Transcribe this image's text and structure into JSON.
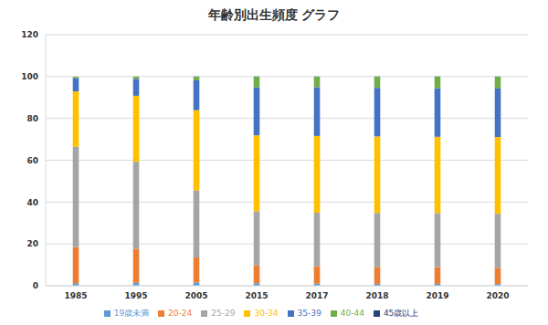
{
  "chart_data": {
    "type": "bar",
    "title": "年齢別出生頻度 グラフ",
    "categories": [
      "1985",
      "1995",
      "2005",
      "2015",
      "2017",
      "2018",
      "2019",
      "2020"
    ],
    "series": [
      {
        "name": "19歳未満",
        "color": "#5B9BD5",
        "values": [
          1.2,
          1.4,
          1.5,
          1.2,
          1.0,
          0.9,
          0.9,
          0.8
        ]
      },
      {
        "name": "20-24",
        "color": "#ED7D31",
        "values": [
          17.3,
          16.3,
          12.0,
          8.5,
          8.3,
          8.1,
          8.0,
          7.7
        ]
      },
      {
        "name": "25-29",
        "color": "#A5A5A5",
        "values": [
          47.9,
          41.6,
          32.1,
          25.9,
          25.6,
          25.8,
          25.8,
          25.9
        ]
      },
      {
        "name": "30-34",
        "color": "#FFC000",
        "values": [
          26.5,
          31.5,
          38.3,
          36.3,
          36.7,
          36.6,
          36.5,
          36.7
        ]
      },
      {
        "name": "35-39",
        "color": "#4472C4",
        "values": [
          6.4,
          8.1,
          14.3,
          22.9,
          23.3,
          23.2,
          23.2,
          23.2
        ]
      },
      {
        "name": "40-44",
        "color": "#70AD47",
        "values": [
          0.6,
          1.1,
          1.7,
          5.1,
          5.0,
          5.3,
          5.5,
          5.6
        ]
      },
      {
        "name": "45歳以上",
        "color": "#264478",
        "values": [
          0.0,
          0.0,
          0.1,
          0.1,
          0.1,
          0.1,
          0.1,
          0.1
        ]
      }
    ],
    "ylim": [
      0,
      120
    ],
    "yticks": [
      0,
      20,
      40,
      60,
      80,
      100,
      120
    ],
    "grid": true,
    "stacked": true,
    "legend": "bottom"
  }
}
